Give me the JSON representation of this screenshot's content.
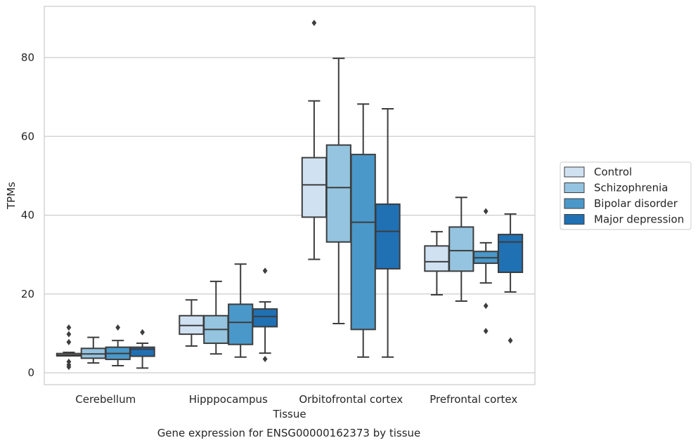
{
  "chart_data": {
    "type": "boxplot",
    "caption": "Gene expression for ENSG00000162373 by tissue",
    "xlabel": "Tissue",
    "ylabel": "TPMs",
    "ylim": [
      -3,
      93
    ],
    "yticks": [
      0,
      20,
      40,
      60,
      80
    ],
    "grid": "horizontal",
    "legend_position": "outside-right",
    "categories": [
      "Cerebellum",
      "Hipppocampus",
      "Orbitofrontal cortex",
      "Prefrontal cortex"
    ],
    "series": [
      {
        "name": "Control",
        "color": "#d0e1f2",
        "boxes": [
          {
            "whislo": 4.3,
            "q1": 4.3,
            "med": 4.5,
            "q3": 4.9,
            "whishi": 5.2,
            "fliers": [
              1.5,
              2.0,
              2.8,
              7.8,
              9.8,
              11.5
            ]
          },
          {
            "whislo": 6.8,
            "q1": 9.8,
            "med": 12.0,
            "q3": 14.5,
            "whishi": 18.5,
            "fliers": []
          },
          {
            "whislo": 28.8,
            "q1": 39.5,
            "med": 47.7,
            "q3": 54.6,
            "whishi": 69.0,
            "fliers": [
              88.8
            ]
          },
          {
            "whislo": 19.8,
            "q1": 25.8,
            "med": 28.2,
            "q3": 32.2,
            "whishi": 35.8,
            "fliers": []
          }
        ]
      },
      {
        "name": "Schizophrenia",
        "color": "#94c4df",
        "boxes": [
          {
            "whislo": 2.5,
            "q1": 3.7,
            "med": 4.8,
            "q3": 6.2,
            "whishi": 9.0,
            "fliers": []
          },
          {
            "whislo": 4.8,
            "q1": 7.5,
            "med": 11.0,
            "q3": 14.5,
            "whishi": 23.2,
            "fliers": []
          },
          {
            "whislo": 12.5,
            "q1": 33.2,
            "med": 47.0,
            "q3": 57.8,
            "whishi": 79.8,
            "fliers": []
          },
          {
            "whislo": 18.2,
            "q1": 25.8,
            "med": 31.0,
            "q3": 37.0,
            "whishi": 44.5,
            "fliers": []
          }
        ]
      },
      {
        "name": "Bipolar disorder",
        "color": "#4a98c9",
        "boxes": [
          {
            "whislo": 1.8,
            "q1": 3.4,
            "med": 4.9,
            "q3": 6.5,
            "whishi": 8.2,
            "fliers": [
              11.5
            ]
          },
          {
            "whislo": 4.0,
            "q1": 7.2,
            "med": 12.8,
            "q3": 17.4,
            "whishi": 27.6,
            "fliers": []
          },
          {
            "whislo": 4.0,
            "q1": 11.0,
            "med": 38.2,
            "q3": 55.4,
            "whishi": 68.2,
            "fliers": []
          },
          {
            "whislo": 22.8,
            "q1": 27.8,
            "med": 29.2,
            "q3": 30.8,
            "whishi": 33.0,
            "fliers": [
              10.6,
              17.0,
              41.0
            ]
          }
        ]
      },
      {
        "name": "Major depression",
        "color": "#2070b4",
        "boxes": [
          {
            "whislo": 1.2,
            "q1": 4.2,
            "med": 6.0,
            "q3": 6.5,
            "whishi": 7.5,
            "fliers": [
              10.3
            ]
          },
          {
            "whislo": 5.0,
            "q1": 11.7,
            "med": 14.3,
            "q3": 16.2,
            "whishi": 18.0,
            "fliers": [
              3.5,
              25.9
            ]
          },
          {
            "whislo": 4.0,
            "q1": 26.4,
            "med": 35.9,
            "q3": 42.8,
            "whishi": 67.0,
            "fliers": []
          },
          {
            "whislo": 20.5,
            "q1": 25.5,
            "med": 33.2,
            "q3": 35.1,
            "whishi": 40.3,
            "fliers": [
              8.2
            ]
          }
        ]
      }
    ]
  }
}
